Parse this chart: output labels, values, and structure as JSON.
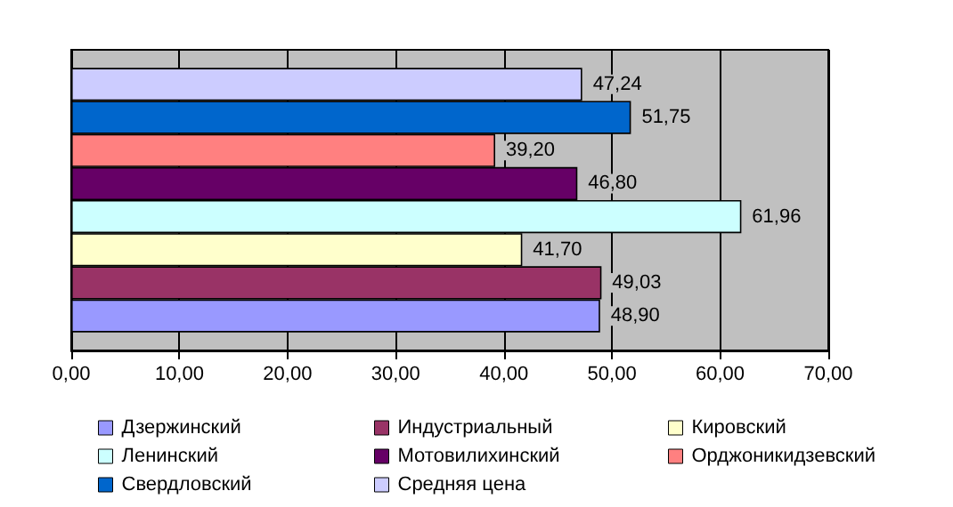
{
  "chart_data": {
    "type": "bar",
    "orientation": "horizontal",
    "categories": [
      null
    ],
    "series": [
      {
        "name": "Дзержинский",
        "color": "#9999ff",
        "values": [
          48.9
        ],
        "value_labels": [
          "48,90"
        ]
      },
      {
        "name": "Индустриальный",
        "color": "#993366",
        "values": [
          49.03
        ],
        "value_labels": [
          "49,03"
        ]
      },
      {
        "name": "Кировский",
        "color": "#ffffcc",
        "values": [
          41.7
        ],
        "value_labels": [
          "41,70"
        ]
      },
      {
        "name": "Ленинский",
        "color": "#ccffff",
        "values": [
          61.96
        ],
        "value_labels": [
          "61,96"
        ]
      },
      {
        "name": "Мотовилихинский",
        "color": "#660066",
        "values": [
          46.8
        ],
        "value_labels": [
          "46,80"
        ]
      },
      {
        "name": "Орджоникидзевский",
        "color": "#ff8080",
        "values": [
          39.2
        ],
        "value_labels": [
          "39,20"
        ]
      },
      {
        "name": "Свердловский",
        "color": "#0066cc",
        "values": [
          51.75
        ],
        "value_labels": [
          "51,75"
        ]
      },
      {
        "name": "Средняя цена",
        "color": "#ccccff",
        "values": [
          47.24
        ],
        "value_labels": [
          "47,24"
        ]
      }
    ],
    "xlim": [
      0,
      70
    ],
    "xticks": [
      {
        "value": 0,
        "label": "0,00"
      },
      {
        "value": 10,
        "label": "10,00"
      },
      {
        "value": 20,
        "label": "20,00"
      },
      {
        "value": 30,
        "label": "30,00"
      },
      {
        "value": 40,
        "label": "40,00"
      },
      {
        "value": 50,
        "label": "50,00"
      },
      {
        "value": 60,
        "label": "60,00"
      },
      {
        "value": 70,
        "label": "70,00"
      }
    ],
    "grid": "x",
    "legend": "bottom"
  }
}
